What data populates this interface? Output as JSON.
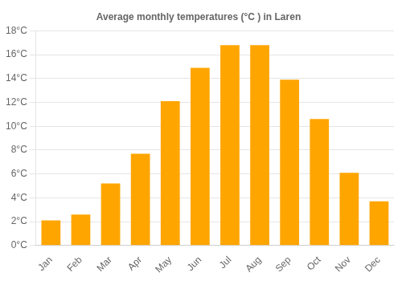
{
  "chart_data": {
    "type": "bar",
    "title": "Average monthly temperatures (°C ) in Laren",
    "categories": [
      "Jan",
      "Feb",
      "Mar",
      "Apr",
      "May",
      "Jun",
      "Jul",
      "Aug",
      "Sep",
      "Oct",
      "Nov",
      "Dec"
    ],
    "values": [
      2.1,
      2.6,
      5.2,
      7.7,
      12.1,
      14.9,
      16.8,
      16.8,
      13.9,
      10.6,
      6.1,
      3.7
    ],
    "color": "#FFA500",
    "ylim": [
      0,
      18
    ],
    "yticks": [
      {
        "value": 0,
        "label": "0°C"
      },
      {
        "value": 2,
        "label": "2°C"
      },
      {
        "value": 4,
        "label": "4°C"
      },
      {
        "value": 6,
        "label": "6°C"
      },
      {
        "value": 8,
        "label": "8°C"
      },
      {
        "value": 10,
        "label": "10°C"
      },
      {
        "value": 12,
        "label": "12°C"
      },
      {
        "value": 14,
        "label": "14°C"
      },
      {
        "value": 16,
        "label": "16°C"
      },
      {
        "value": 18,
        "label": "18°C"
      }
    ],
    "grid": true
  }
}
